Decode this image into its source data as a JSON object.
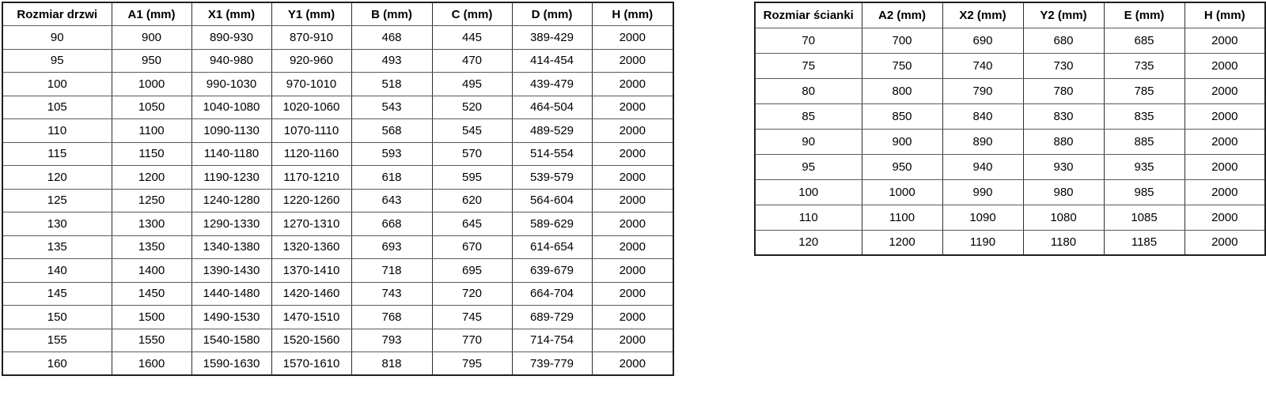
{
  "colors": {
    "background": "#ffffff",
    "text": "#000000",
    "border_outer": "#1f1f1f",
    "border_vertical": "#2e2e2e",
    "border_horizontal": "#5a5a5a"
  },
  "tables": [
    {
      "name": "door-sizes",
      "headers": [
        "Rozmiar drzwi",
        "A1 (mm)",
        "X1 (mm)",
        "Y1 (mm)",
        "B (mm)",
        "C (mm)",
        "D (mm)",
        "H (mm)"
      ],
      "rows": [
        [
          "90",
          "900",
          "890-930",
          "870-910",
          "468",
          "445",
          "389-429",
          "2000"
        ],
        [
          "95",
          "950",
          "940-980",
          "920-960",
          "493",
          "470",
          "414-454",
          "2000"
        ],
        [
          "100",
          "1000",
          "990-1030",
          "970-1010",
          "518",
          "495",
          "439-479",
          "2000"
        ],
        [
          "105",
          "1050",
          "1040-1080",
          "1020-1060",
          "543",
          "520",
          "464-504",
          "2000"
        ],
        [
          "110",
          "1100",
          "1090-1130",
          "1070-1110",
          "568",
          "545",
          "489-529",
          "2000"
        ],
        [
          "115",
          "1150",
          "1140-1180",
          "1120-1160",
          "593",
          "570",
          "514-554",
          "2000"
        ],
        [
          "120",
          "1200",
          "1190-1230",
          "1170-1210",
          "618",
          "595",
          "539-579",
          "2000"
        ],
        [
          "125",
          "1250",
          "1240-1280",
          "1220-1260",
          "643",
          "620",
          "564-604",
          "2000"
        ],
        [
          "130",
          "1300",
          "1290-1330",
          "1270-1310",
          "668",
          "645",
          "589-629",
          "2000"
        ],
        [
          "135",
          "1350",
          "1340-1380",
          "1320-1360",
          "693",
          "670",
          "614-654",
          "2000"
        ],
        [
          "140",
          "1400",
          "1390-1430",
          "1370-1410",
          "718",
          "695",
          "639-679",
          "2000"
        ],
        [
          "145",
          "1450",
          "1440-1480",
          "1420-1460",
          "743",
          "720",
          "664-704",
          "2000"
        ],
        [
          "150",
          "1500",
          "1490-1530",
          "1470-1510",
          "768",
          "745",
          "689-729",
          "2000"
        ],
        [
          "155",
          "1550",
          "1540-1580",
          "1520-1560",
          "793",
          "770",
          "714-754",
          "2000"
        ],
        [
          "160",
          "1600",
          "1590-1630",
          "1570-1610",
          "818",
          "795",
          "739-779",
          "2000"
        ]
      ]
    },
    {
      "name": "wall-sizes",
      "headers": [
        "Rozmiar ścianki",
        "A2 (mm)",
        "X2 (mm)",
        "Y2 (mm)",
        "E (mm)",
        "H (mm)"
      ],
      "rows": [
        [
          "70",
          "700",
          "690",
          "680",
          "685",
          "2000"
        ],
        [
          "75",
          "750",
          "740",
          "730",
          "735",
          "2000"
        ],
        [
          "80",
          "800",
          "790",
          "780",
          "785",
          "2000"
        ],
        [
          "85",
          "850",
          "840",
          "830",
          "835",
          "2000"
        ],
        [
          "90",
          "900",
          "890",
          "880",
          "885",
          "2000"
        ],
        [
          "95",
          "950",
          "940",
          "930",
          "935",
          "2000"
        ],
        [
          "100",
          "1000",
          "990",
          "980",
          "985",
          "2000"
        ],
        [
          "110",
          "1100",
          "1090",
          "1080",
          "1085",
          "2000"
        ],
        [
          "120",
          "1200",
          "1190",
          "1180",
          "1185",
          "2000"
        ]
      ]
    }
  ]
}
